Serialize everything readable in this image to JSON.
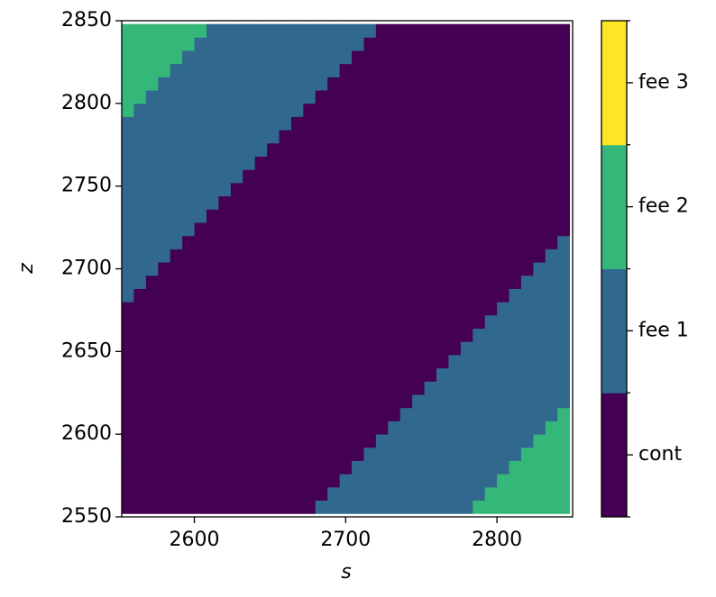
{
  "chart_data": {
    "type": "heatmap",
    "xlabel": "s",
    "ylabel": "z",
    "x": [
      2556,
      2564,
      2572,
      2580,
      2588,
      2596,
      2604,
      2612,
      2620,
      2628,
      2636,
      2644,
      2652,
      2660,
      2668,
      2676,
      2684,
      2692,
      2700,
      2708,
      2716,
      2724,
      2732,
      2740,
      2748,
      2756,
      2764,
      2772,
      2780,
      2788,
      2796,
      2804,
      2812,
      2820,
      2828,
      2836,
      2844
    ],
    "y": [
      2556,
      2564,
      2572,
      2580,
      2588,
      2596,
      2604,
      2612,
      2620,
      2628,
      2636,
      2644,
      2652,
      2660,
      2668,
      2676,
      2684,
      2692,
      2700,
      2708,
      2716,
      2724,
      2732,
      2740,
      2748,
      2756,
      2764,
      2772,
      2780,
      2788,
      2796,
      2804,
      2812,
      2820,
      2828,
      2836,
      2844
    ],
    "xlim": [
      2552,
      2850
    ],
    "ylim": [
      2550,
      2850
    ],
    "xticks": [
      2600,
      2700,
      2800
    ],
    "yticks": [
      2550,
      2600,
      2650,
      2700,
      2750,
      2800,
      2850
    ],
    "categories": [
      "cont",
      "fee 1",
      "fee 2",
      "fee 3"
    ],
    "colors": [
      "#440154",
      "#31688e",
      "#35b779",
      "#fde725"
    ],
    "values": [
      [
        0,
        0,
        0,
        0,
        0,
        0,
        0,
        0,
        0,
        0,
        0,
        0,
        0,
        0,
        0,
        0,
        1,
        1,
        1,
        1,
        1,
        1,
        1,
        1,
        1,
        1,
        1,
        1,
        1,
        2,
        2,
        2,
        2,
        2,
        2,
        2,
        2
      ],
      [
        0,
        0,
        0,
        0,
        0,
        0,
        0,
        0,
        0,
        0,
        0,
        0,
        0,
        0,
        0,
        0,
        0,
        1,
        1,
        1,
        1,
        1,
        1,
        1,
        1,
        1,
        1,
        1,
        1,
        1,
        2,
        2,
        2,
        2,
        2,
        2,
        2
      ],
      [
        0,
        0,
        0,
        0,
        0,
        0,
        0,
        0,
        0,
        0,
        0,
        0,
        0,
        0,
        0,
        0,
        0,
        0,
        1,
        1,
        1,
        1,
        1,
        1,
        1,
        1,
        1,
        1,
        1,
        1,
        1,
        2,
        2,
        2,
        2,
        2,
        2
      ],
      [
        0,
        0,
        0,
        0,
        0,
        0,
        0,
        0,
        0,
        0,
        0,
        0,
        0,
        0,
        0,
        0,
        0,
        0,
        0,
        1,
        1,
        1,
        1,
        1,
        1,
        1,
        1,
        1,
        1,
        1,
        1,
        1,
        2,
        2,
        2,
        2,
        2
      ],
      [
        0,
        0,
        0,
        0,
        0,
        0,
        0,
        0,
        0,
        0,
        0,
        0,
        0,
        0,
        0,
        0,
        0,
        0,
        0,
        0,
        1,
        1,
        1,
        1,
        1,
        1,
        1,
        1,
        1,
        1,
        1,
        1,
        1,
        2,
        2,
        2,
        2
      ],
      [
        0,
        0,
        0,
        0,
        0,
        0,
        0,
        0,
        0,
        0,
        0,
        0,
        0,
        0,
        0,
        0,
        0,
        0,
        0,
        0,
        0,
        1,
        1,
        1,
        1,
        1,
        1,
        1,
        1,
        1,
        1,
        1,
        1,
        1,
        2,
        2,
        2
      ],
      [
        0,
        0,
        0,
        0,
        0,
        0,
        0,
        0,
        0,
        0,
        0,
        0,
        0,
        0,
        0,
        0,
        0,
        0,
        0,
        0,
        0,
        0,
        1,
        1,
        1,
        1,
        1,
        1,
        1,
        1,
        1,
        1,
        1,
        1,
        1,
        2,
        2
      ],
      [
        0,
        0,
        0,
        0,
        0,
        0,
        0,
        0,
        0,
        0,
        0,
        0,
        0,
        0,
        0,
        0,
        0,
        0,
        0,
        0,
        0,
        0,
        0,
        1,
        1,
        1,
        1,
        1,
        1,
        1,
        1,
        1,
        1,
        1,
        1,
        1,
        2
      ],
      [
        0,
        0,
        0,
        0,
        0,
        0,
        0,
        0,
        0,
        0,
        0,
        0,
        0,
        0,
        0,
        0,
        0,
        0,
        0,
        0,
        0,
        0,
        0,
        0,
        1,
        1,
        1,
        1,
        1,
        1,
        1,
        1,
        1,
        1,
        1,
        1,
        1
      ],
      [
        0,
        0,
        0,
        0,
        0,
        0,
        0,
        0,
        0,
        0,
        0,
        0,
        0,
        0,
        0,
        0,
        0,
        0,
        0,
        0,
        0,
        0,
        0,
        0,
        0,
        1,
        1,
        1,
        1,
        1,
        1,
        1,
        1,
        1,
        1,
        1,
        1
      ],
      [
        0,
        0,
        0,
        0,
        0,
        0,
        0,
        0,
        0,
        0,
        0,
        0,
        0,
        0,
        0,
        0,
        0,
        0,
        0,
        0,
        0,
        0,
        0,
        0,
        0,
        0,
        1,
        1,
        1,
        1,
        1,
        1,
        1,
        1,
        1,
        1,
        1
      ],
      [
        0,
        0,
        0,
        0,
        0,
        0,
        0,
        0,
        0,
        0,
        0,
        0,
        0,
        0,
        0,
        0,
        0,
        0,
        0,
        0,
        0,
        0,
        0,
        0,
        0,
        0,
        0,
        1,
        1,
        1,
        1,
        1,
        1,
        1,
        1,
        1,
        1
      ],
      [
        0,
        0,
        0,
        0,
        0,
        0,
        0,
        0,
        0,
        0,
        0,
        0,
        0,
        0,
        0,
        0,
        0,
        0,
        0,
        0,
        0,
        0,
        0,
        0,
        0,
        0,
        0,
        0,
        1,
        1,
        1,
        1,
        1,
        1,
        1,
        1,
        1
      ],
      [
        0,
        0,
        0,
        0,
        0,
        0,
        0,
        0,
        0,
        0,
        0,
        0,
        0,
        0,
        0,
        0,
        0,
        0,
        0,
        0,
        0,
        0,
        0,
        0,
        0,
        0,
        0,
        0,
        0,
        1,
        1,
        1,
        1,
        1,
        1,
        1,
        1
      ],
      [
        0,
        0,
        0,
        0,
        0,
        0,
        0,
        0,
        0,
        0,
        0,
        0,
        0,
        0,
        0,
        0,
        0,
        0,
        0,
        0,
        0,
        0,
        0,
        0,
        0,
        0,
        0,
        0,
        0,
        0,
        1,
        1,
        1,
        1,
        1,
        1,
        1
      ],
      [
        0,
        0,
        0,
        0,
        0,
        0,
        0,
        0,
        0,
        0,
        0,
        0,
        0,
        0,
        0,
        0,
        0,
        0,
        0,
        0,
        0,
        0,
        0,
        0,
        0,
        0,
        0,
        0,
        0,
        0,
        0,
        1,
        1,
        1,
        1,
        1,
        1
      ],
      [
        1,
        0,
        0,
        0,
        0,
        0,
        0,
        0,
        0,
        0,
        0,
        0,
        0,
        0,
        0,
        0,
        0,
        0,
        0,
        0,
        0,
        0,
        0,
        0,
        0,
        0,
        0,
        0,
        0,
        0,
        0,
        0,
        1,
        1,
        1,
        1,
        1
      ],
      [
        1,
        1,
        0,
        0,
        0,
        0,
        0,
        0,
        0,
        0,
        0,
        0,
        0,
        0,
        0,
        0,
        0,
        0,
        0,
        0,
        0,
        0,
        0,
        0,
        0,
        0,
        0,
        0,
        0,
        0,
        0,
        0,
        0,
        1,
        1,
        1,
        1
      ],
      [
        1,
        1,
        1,
        0,
        0,
        0,
        0,
        0,
        0,
        0,
        0,
        0,
        0,
        0,
        0,
        0,
        0,
        0,
        0,
        0,
        0,
        0,
        0,
        0,
        0,
        0,
        0,
        0,
        0,
        0,
        0,
        0,
        0,
        0,
        1,
        1,
        1
      ],
      [
        1,
        1,
        1,
        1,
        0,
        0,
        0,
        0,
        0,
        0,
        0,
        0,
        0,
        0,
        0,
        0,
        0,
        0,
        0,
        0,
        0,
        0,
        0,
        0,
        0,
        0,
        0,
        0,
        0,
        0,
        0,
        0,
        0,
        0,
        0,
        1,
        1
      ],
      [
        1,
        1,
        1,
        1,
        1,
        0,
        0,
        0,
        0,
        0,
        0,
        0,
        0,
        0,
        0,
        0,
        0,
        0,
        0,
        0,
        0,
        0,
        0,
        0,
        0,
        0,
        0,
        0,
        0,
        0,
        0,
        0,
        0,
        0,
        0,
        0,
        1
      ],
      [
        1,
        1,
        1,
        1,
        1,
        1,
        0,
        0,
        0,
        0,
        0,
        0,
        0,
        0,
        0,
        0,
        0,
        0,
        0,
        0,
        0,
        0,
        0,
        0,
        0,
        0,
        0,
        0,
        0,
        0,
        0,
        0,
        0,
        0,
        0,
        0,
        0
      ],
      [
        1,
        1,
        1,
        1,
        1,
        1,
        1,
        0,
        0,
        0,
        0,
        0,
        0,
        0,
        0,
        0,
        0,
        0,
        0,
        0,
        0,
        0,
        0,
        0,
        0,
        0,
        0,
        0,
        0,
        0,
        0,
        0,
        0,
        0,
        0,
        0,
        0
      ],
      [
        1,
        1,
        1,
        1,
        1,
        1,
        1,
        1,
        0,
        0,
        0,
        0,
        0,
        0,
        0,
        0,
        0,
        0,
        0,
        0,
        0,
        0,
        0,
        0,
        0,
        0,
        0,
        0,
        0,
        0,
        0,
        0,
        0,
        0,
        0,
        0,
        0
      ],
      [
        1,
        1,
        1,
        1,
        1,
        1,
        1,
        1,
        1,
        0,
        0,
        0,
        0,
        0,
        0,
        0,
        0,
        0,
        0,
        0,
        0,
        0,
        0,
        0,
        0,
        0,
        0,
        0,
        0,
        0,
        0,
        0,
        0,
        0,
        0,
        0,
        0
      ],
      [
        1,
        1,
        1,
        1,
        1,
        1,
        1,
        1,
        1,
        1,
        0,
        0,
        0,
        0,
        0,
        0,
        0,
        0,
        0,
        0,
        0,
        0,
        0,
        0,
        0,
        0,
        0,
        0,
        0,
        0,
        0,
        0,
        0,
        0,
        0,
        0,
        0
      ],
      [
        1,
        1,
        1,
        1,
        1,
        1,
        1,
        1,
        1,
        1,
        1,
        0,
        0,
        0,
        0,
        0,
        0,
        0,
        0,
        0,
        0,
        0,
        0,
        0,
        0,
        0,
        0,
        0,
        0,
        0,
        0,
        0,
        0,
        0,
        0,
        0,
        0
      ],
      [
        1,
        1,
        1,
        1,
        1,
        1,
        1,
        1,
        1,
        1,
        1,
        1,
        0,
        0,
        0,
        0,
        0,
        0,
        0,
        0,
        0,
        0,
        0,
        0,
        0,
        0,
        0,
        0,
        0,
        0,
        0,
        0,
        0,
        0,
        0,
        0,
        0
      ],
      [
        1,
        1,
        1,
        1,
        1,
        1,
        1,
        1,
        1,
        1,
        1,
        1,
        1,
        0,
        0,
        0,
        0,
        0,
        0,
        0,
        0,
        0,
        0,
        0,
        0,
        0,
        0,
        0,
        0,
        0,
        0,
        0,
        0,
        0,
        0,
        0,
        0
      ],
      [
        1,
        1,
        1,
        1,
        1,
        1,
        1,
        1,
        1,
        1,
        1,
        1,
        1,
        1,
        0,
        0,
        0,
        0,
        0,
        0,
        0,
        0,
        0,
        0,
        0,
        0,
        0,
        0,
        0,
        0,
        0,
        0,
        0,
        0,
        0,
        0,
        0
      ],
      [
        2,
        1,
        1,
        1,
        1,
        1,
        1,
        1,
        1,
        1,
        1,
        1,
        1,
        1,
        1,
        0,
        0,
        0,
        0,
        0,
        0,
        0,
        0,
        0,
        0,
        0,
        0,
        0,
        0,
        0,
        0,
        0,
        0,
        0,
        0,
        0,
        0
      ],
      [
        2,
        2,
        1,
        1,
        1,
        1,
        1,
        1,
        1,
        1,
        1,
        1,
        1,
        1,
        1,
        1,
        0,
        0,
        0,
        0,
        0,
        0,
        0,
        0,
        0,
        0,
        0,
        0,
        0,
        0,
        0,
        0,
        0,
        0,
        0,
        0,
        0
      ],
      [
        2,
        2,
        2,
        1,
        1,
        1,
        1,
        1,
        1,
        1,
        1,
        1,
        1,
        1,
        1,
        1,
        1,
        0,
        0,
        0,
        0,
        0,
        0,
        0,
        0,
        0,
        0,
        0,
        0,
        0,
        0,
        0,
        0,
        0,
        0,
        0,
        0
      ],
      [
        2,
        2,
        2,
        2,
        1,
        1,
        1,
        1,
        1,
        1,
        1,
        1,
        1,
        1,
        1,
        1,
        1,
        1,
        0,
        0,
        0,
        0,
        0,
        0,
        0,
        0,
        0,
        0,
        0,
        0,
        0,
        0,
        0,
        0,
        0,
        0,
        0
      ],
      [
        2,
        2,
        2,
        2,
        2,
        1,
        1,
        1,
        1,
        1,
        1,
        1,
        1,
        1,
        1,
        1,
        1,
        1,
        1,
        0,
        0,
        0,
        0,
        0,
        0,
        0,
        0,
        0,
        0,
        0,
        0,
        0,
        0,
        0,
        0,
        0,
        0
      ],
      [
        2,
        2,
        2,
        2,
        2,
        2,
        1,
        1,
        1,
        1,
        1,
        1,
        1,
        1,
        1,
        1,
        1,
        1,
        1,
        1,
        0,
        0,
        0,
        0,
        0,
        0,
        0,
        0,
        0,
        0,
        0,
        0,
        0,
        0,
        0,
        0,
        0
      ],
      [
        2,
        2,
        2,
        2,
        2,
        2,
        2,
        1,
        1,
        1,
        1,
        1,
        1,
        1,
        1,
        1,
        1,
        1,
        1,
        1,
        1,
        0,
        0,
        0,
        0,
        0,
        0,
        0,
        0,
        0,
        0,
        0,
        0,
        0,
        0,
        0,
        0
      ]
    ]
  }
}
